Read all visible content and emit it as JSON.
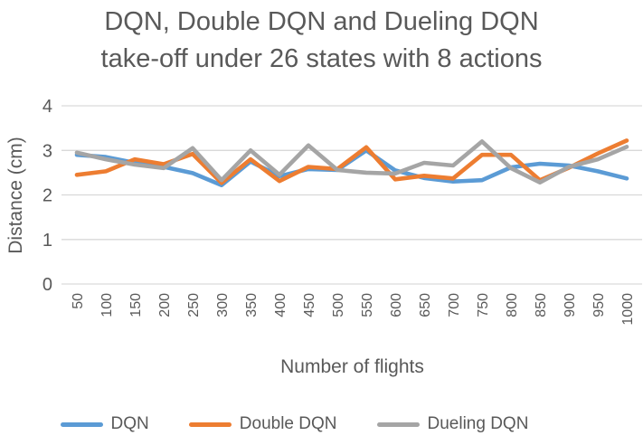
{
  "header": {
    "title_line1": "DQN, Double DQN and Dueling DQN",
    "title_line2": "take-off under 26 states with 8 actions"
  },
  "chart_data": {
    "type": "line",
    "title": "DQN, Double DQN and Dueling DQN take-off under 26 states with 8 actions",
    "xlabel": "Number of flights",
    "ylabel": "Distance (cm)",
    "ylim": [
      0,
      4
    ],
    "yticks": [
      0,
      1,
      2,
      3,
      4
    ],
    "grid": "horizontal-only",
    "legend_position": "bottom",
    "text_color": "#595959",
    "gridline_color": "#d9d9d9",
    "categories": [
      50,
      100,
      150,
      200,
      250,
      300,
      350,
      400,
      450,
      500,
      550,
      600,
      650,
      700,
      750,
      800,
      850,
      900,
      950,
      1000
    ],
    "series": [
      {
        "name": "DQN",
        "color": "#5b9bd5",
        "values": [
          2.9,
          2.85,
          2.72,
          2.63,
          2.49,
          2.22,
          2.75,
          2.42,
          2.58,
          2.56,
          3.0,
          2.55,
          2.38,
          2.3,
          2.33,
          2.62,
          2.7,
          2.66,
          2.53,
          2.37
        ]
      },
      {
        "name": "Double DQN",
        "color": "#ed7d31",
        "values": [
          2.45,
          2.53,
          2.8,
          2.69,
          2.92,
          2.27,
          2.8,
          2.31,
          2.63,
          2.58,
          3.07,
          2.35,
          2.43,
          2.37,
          2.9,
          2.9,
          2.33,
          2.61,
          2.93,
          3.22
        ]
      },
      {
        "name": "Dueling DQN",
        "color": "#a5a5a5",
        "values": [
          2.95,
          2.8,
          2.68,
          2.6,
          3.05,
          2.33,
          3.0,
          2.45,
          3.11,
          2.56,
          2.5,
          2.48,
          2.72,
          2.66,
          3.2,
          2.6,
          2.28,
          2.63,
          2.8,
          3.08
        ]
      }
    ]
  }
}
